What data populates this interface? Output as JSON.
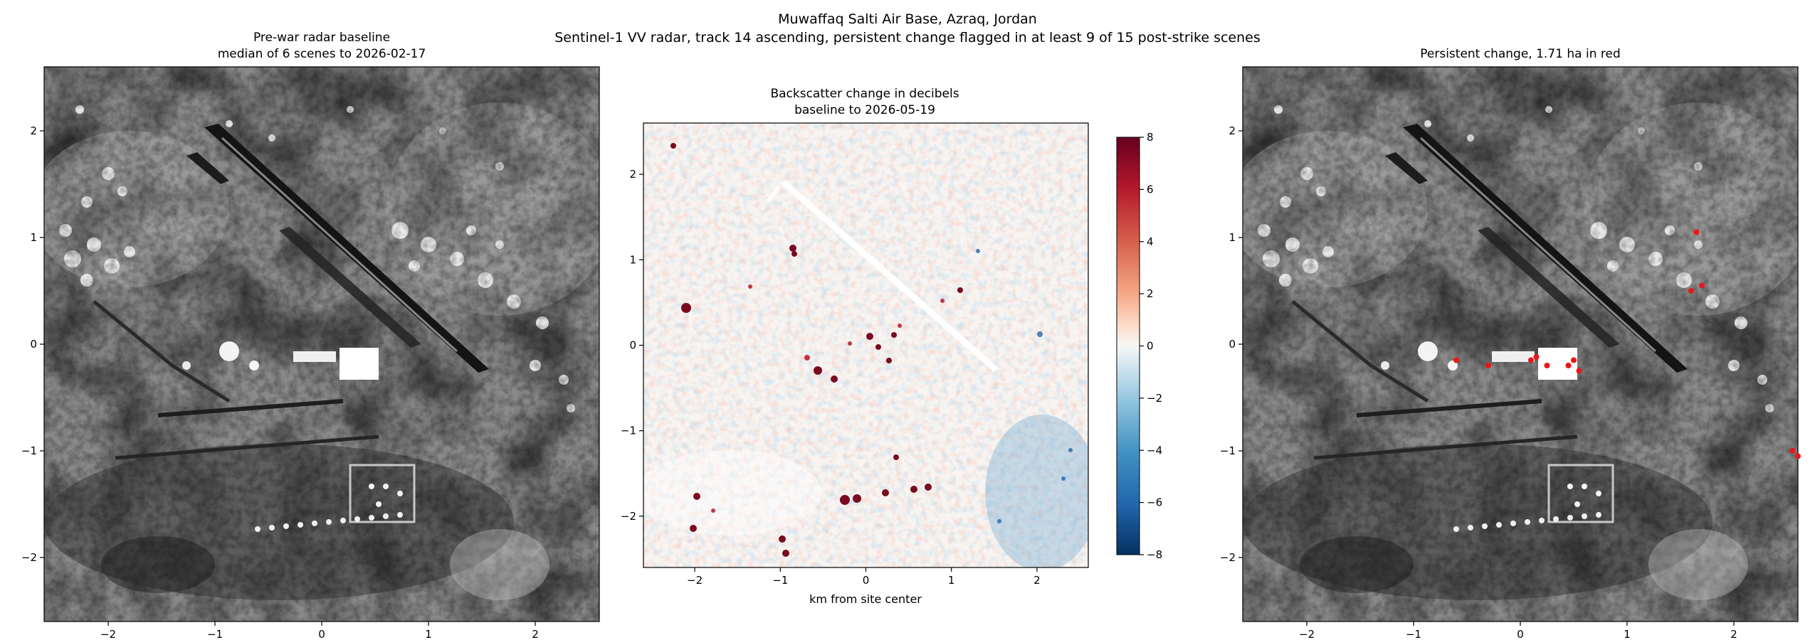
{
  "suptitle": {
    "line1": "Muwaffaq Salti Air Base, Azraq, Jordan",
    "line2": "Sentinel-1 VV radar, track 14 ascending, persistent change flagged in at least 9 of 15 post-strike scenes"
  },
  "colors": {
    "cmap_low": "#053061",
    "cmap_mid": "#f7f7f7",
    "cmap_high": "#67001f",
    "flag": "#e8161b",
    "runway": "#141414"
  },
  "chart_data": [
    {
      "type": "heatmap",
      "title_line1": "Pre-war radar baseline",
      "title_line2": "median of 6 scenes to 2026-02-17",
      "xlabel": "",
      "ylabel": "",
      "xlim": [
        -2.6,
        2.6
      ],
      "ylim": [
        -2.6,
        2.6
      ],
      "xticks": [
        -2,
        -1,
        0,
        1,
        2
      ],
      "yticks": [
        -2,
        -1,
        0,
        1,
        2
      ],
      "xtick_labels": [
        "−2",
        "−1",
        "0",
        "1",
        "2"
      ],
      "ytick_labels": [
        "−2",
        "−1",
        "0",
        "1",
        "2"
      ],
      "colormap": "gray",
      "grid": false
    },
    {
      "type": "heatmap",
      "title_line1": "Backscatter change in decibels",
      "title_line2": "baseline to 2026-05-19",
      "xlabel": "km from site center",
      "ylabel": "",
      "xlim": [
        -2.6,
        2.6
      ],
      "ylim": [
        -2.6,
        2.6
      ],
      "xticks": [
        -2,
        -1,
        0,
        1,
        2
      ],
      "yticks": [
        -2,
        -1,
        0,
        1,
        2
      ],
      "xtick_labels": [
        "−2",
        "−1",
        "0",
        "1",
        "2"
      ],
      "ytick_labels": [
        "−2",
        "−1",
        "0",
        "1",
        "2"
      ],
      "colormap": "RdBu_r",
      "grid": false,
      "colorbar": {
        "range": [
          -8,
          8
        ],
        "ticks": [
          8,
          6,
          4,
          2,
          0,
          -2,
          -4,
          -6,
          -8
        ],
        "tick_labels": [
          "8",
          "6",
          "4",
          "2",
          "0",
          "−2",
          "−4",
          "−6",
          "−8"
        ]
      }
    },
    {
      "type": "heatmap",
      "title_line1": "Persistent change, 1.71 ha in red",
      "xlabel": "",
      "ylabel": "",
      "xlim": [
        -2.6,
        2.6
      ],
      "ylim": [
        -2.6,
        2.6
      ],
      "xticks": [
        -2,
        -1,
        0,
        1,
        2
      ],
      "yticks": [
        -2,
        -1,
        0,
        1,
        2
      ],
      "xtick_labels": [
        "−2",
        "−1",
        "0",
        "1",
        "2"
      ],
      "ytick_labels": [
        "−2",
        "−1",
        "0",
        "1",
        "2"
      ],
      "colormap": "gray",
      "grid": false,
      "flagged_area_ha": 1.71,
      "flagged_spots_km": [
        [
          1.65,
          1.05
        ],
        [
          1.7,
          0.55
        ],
        [
          1.6,
          0.5
        ],
        [
          0.5,
          -0.15
        ],
        [
          0.45,
          -0.2
        ],
        [
          0.55,
          -0.25
        ],
        [
          0.1,
          -0.15
        ],
        [
          0.15,
          -0.12
        ],
        [
          -0.3,
          -0.2
        ],
        [
          -0.6,
          -0.15
        ],
        [
          0.25,
          -0.2
        ],
        [
          2.6,
          -1.05
        ],
        [
          2.55,
          -1.0
        ]
      ]
    }
  ]
}
